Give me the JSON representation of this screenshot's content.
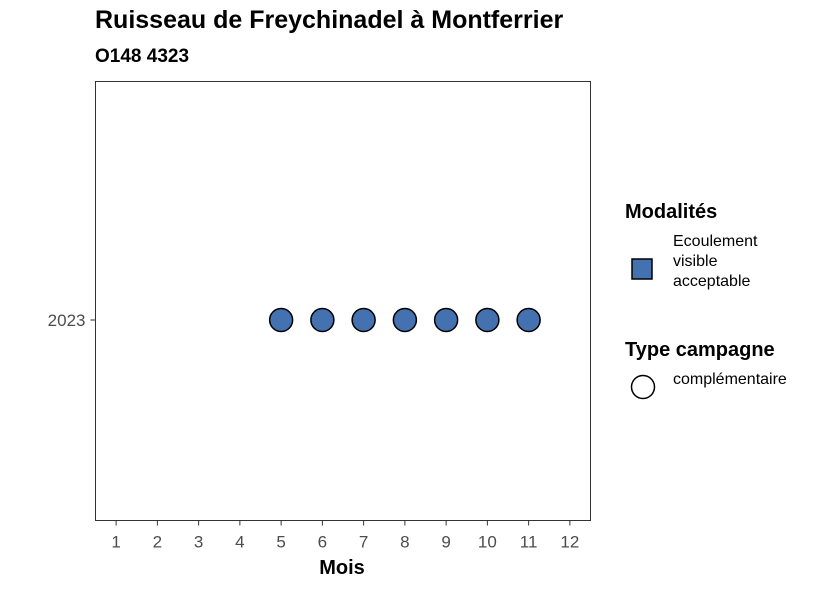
{
  "chart_data": {
    "type": "scatter",
    "title": "Ruisseau de Freychinadel à Montferrier",
    "subtitle": "O148 4323",
    "xlabel": "Mois",
    "ylabel": "",
    "x_ticks": [
      "1",
      "2",
      "3",
      "4",
      "5",
      "6",
      "7",
      "8",
      "9",
      "10",
      "11",
      "12"
    ],
    "xlim": [
      0.5,
      12.5
    ],
    "y_categories": [
      "2023"
    ],
    "grid": false,
    "legend_position": "right",
    "points": [
      {
        "x": 5,
        "y": "2023"
      },
      {
        "x": 6,
        "y": "2023"
      },
      {
        "x": 7,
        "y": "2023"
      },
      {
        "x": 8,
        "y": "2023"
      },
      {
        "x": 9,
        "y": "2023"
      },
      {
        "x": 10,
        "y": "2023"
      },
      {
        "x": 11,
        "y": "2023"
      }
    ],
    "point_color": "#4472b0",
    "legends": [
      {
        "title": "Modalités",
        "items": [
          {
            "label_lines": [
              "Ecoulement",
              "visible",
              "acceptable"
            ],
            "shape": "square",
            "color": "#4472b0"
          }
        ]
      },
      {
        "title": "Type campagne",
        "items": [
          {
            "label_lines": [
              "complémentaire"
            ],
            "shape": "circle",
            "color": "#ffffff"
          }
        ]
      }
    ]
  }
}
